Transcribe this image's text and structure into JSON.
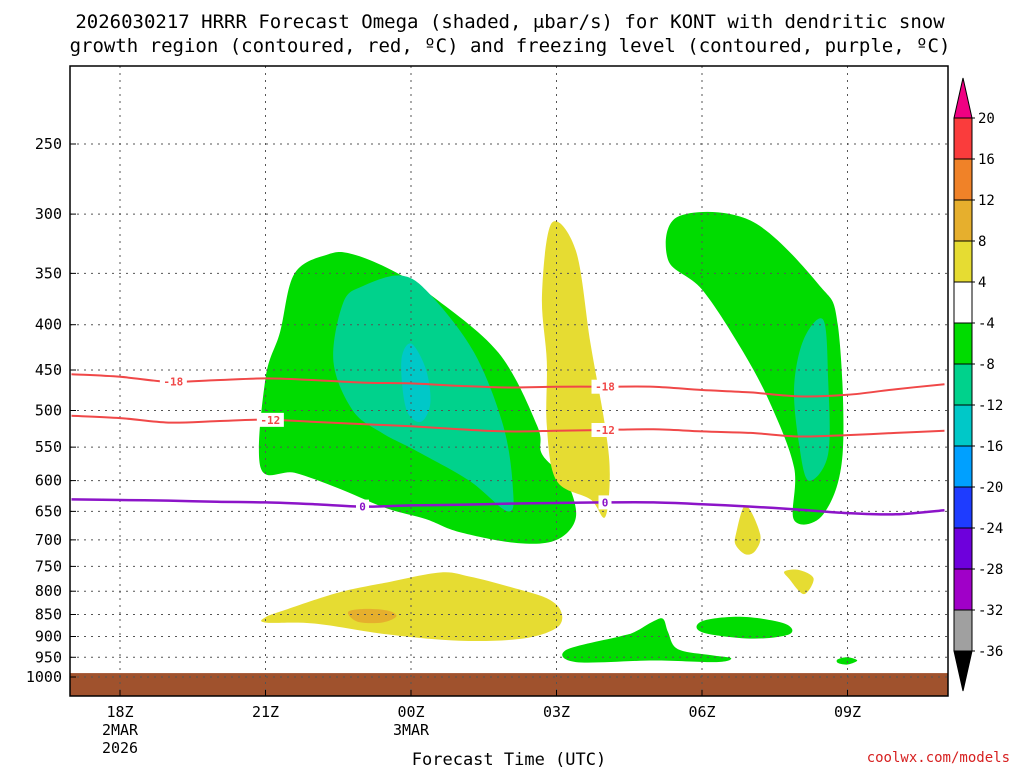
{
  "title": {
    "line1": "2026030217 HRRR Forecast Omega (shaded, μbar/s) for KONT with dendritic snow",
    "line2": "growth region (contoured, red, ºC) and freezing level (contoured, purple, ºC)"
  },
  "credit": "coolwx.com/models",
  "chart_data": {
    "type": "contour",
    "xlabel": "Forecast Time (UTC)",
    "ylabel": "",
    "x_ticks": [
      {
        "hour": 0,
        "label": "18Z",
        "sub1": "2MAR",
        "sub2": "2026"
      },
      {
        "hour": 3,
        "label": "21Z",
        "sub1": "",
        "sub2": ""
      },
      {
        "hour": 6,
        "label": "00Z",
        "sub1": "3MAR",
        "sub2": ""
      },
      {
        "hour": 9,
        "label": "03Z",
        "sub1": "",
        "sub2": ""
      },
      {
        "hour": 12,
        "label": "06Z",
        "sub1": "",
        "sub2": ""
      },
      {
        "hour": 15,
        "label": "09Z",
        "sub1": "",
        "sub2": ""
      }
    ],
    "y_ticks": [
      250,
      300,
      350,
      400,
      450,
      500,
      550,
      600,
      650,
      700,
      750,
      800,
      850,
      900,
      950,
      1000
    ],
    "ylim_hpa": [
      1000,
      200
    ],
    "xlim_hours": [
      -1,
      17
    ],
    "grid": true,
    "colorbar": {
      "levels": [
        -36,
        -32,
        -28,
        -24,
        -20,
        -16,
        -12,
        -8,
        -4,
        4,
        8,
        12,
        16,
        20
      ],
      "colors": [
        "#000000",
        "#a0a0a0",
        "#a000c8",
        "#6e00dc",
        "#1e3cff",
        "#00a0ff",
        "#00c8c8",
        "#00d28c",
        "#00dc00",
        "#ffffff",
        "#e6dc32",
        "#e6af2d",
        "#f08228",
        "#fa3c3c",
        "#f00082"
      ]
    },
    "ground": {
      "top_hpa": 990,
      "color": "#a0522d"
    },
    "shaded_regions": [
      {
        "level": -4,
        "color": "#00dc00",
        "points": [
          [
            2.9,
            580
          ],
          [
            3.0,
            460
          ],
          [
            3.3,
            408
          ],
          [
            3.6,
            350
          ],
          [
            4.3,
            333
          ],
          [
            4.8,
            333
          ],
          [
            5.6,
            347
          ],
          [
            6.4,
            370
          ],
          [
            7.8,
            430
          ],
          [
            8.6,
            520
          ],
          [
            8.7,
            560
          ],
          [
            9.2,
            600
          ],
          [
            9.4,
            660
          ],
          [
            9.0,
            700
          ],
          [
            8.2,
            706
          ],
          [
            7.0,
            686
          ],
          [
            6.3,
            663
          ],
          [
            5.5,
            645
          ],
          [
            4.5,
            612
          ],
          [
            3.6,
            588
          ]
        ]
      },
      {
        "level": -8,
        "color": "#00d28c",
        "points": [
          [
            4.4,
            440
          ],
          [
            4.6,
            378
          ],
          [
            5.0,
            362
          ],
          [
            5.8,
            352
          ],
          [
            6.4,
            370
          ],
          [
            7.3,
            430
          ],
          [
            7.9,
            520
          ],
          [
            8.1,
            610
          ],
          [
            8.0,
            650
          ],
          [
            7.2,
            600
          ],
          [
            6.1,
            555
          ],
          [
            5.4,
            530
          ],
          [
            4.8,
            500
          ]
        ]
      },
      {
        "level": -12,
        "color": "#00c8c8",
        "points": [
          [
            5.8,
            440
          ],
          [
            6.0,
            420
          ],
          [
            6.3,
            448
          ],
          [
            6.4,
            490
          ],
          [
            6.2,
            515
          ],
          [
            5.9,
            498
          ]
        ]
      },
      {
        "level": -4,
        "color": "#00dc00",
        "points": [
          [
            9.2,
            932
          ],
          [
            10.3,
            900
          ],
          [
            10.6,
            890
          ],
          [
            11.0,
            865
          ],
          [
            11.2,
            860
          ],
          [
            11.3,
            890
          ],
          [
            11.5,
            930
          ],
          [
            12.2,
            945
          ],
          [
            12.6,
            952
          ],
          [
            12.3,
            962
          ],
          [
            11.0,
            958
          ],
          [
            9.4,
            962
          ]
        ]
      },
      {
        "level": -4,
        "color": "#00dc00",
        "points": [
          [
            11.5,
            302
          ],
          [
            13.0,
            305
          ],
          [
            14.4,
            360
          ],
          [
            14.8,
            400
          ],
          [
            14.9,
            560
          ],
          [
            14.5,
            655
          ],
          [
            13.9,
            665
          ],
          [
            13.9,
            580
          ],
          [
            13.4,
            490
          ],
          [
            12.8,
            425
          ],
          [
            12.0,
            365
          ],
          [
            11.3,
            338
          ]
        ]
      },
      {
        "level": -8,
        "color": "#00d28c",
        "points": [
          [
            14.1,
            415
          ],
          [
            14.5,
            395
          ],
          [
            14.6,
            460
          ],
          [
            14.6,
            560
          ],
          [
            14.2,
            600
          ],
          [
            14.0,
            545
          ],
          [
            13.9,
            470
          ]
        ]
      },
      {
        "level": -4,
        "color": "#00dc00",
        "points": [
          [
            12.0,
            865
          ],
          [
            12.8,
            855
          ],
          [
            13.7,
            870
          ],
          [
            13.8,
            895
          ],
          [
            13.0,
            905
          ],
          [
            12.0,
            890
          ]
        ]
      },
      {
        "level": -4,
        "color": "#00dc00",
        "points": [
          [
            14.8,
            955
          ],
          [
            15.0,
            950
          ],
          [
            15.2,
            958
          ],
          [
            15.0,
            968
          ],
          [
            14.8,
            964
          ]
        ]
      },
      {
        "level": 4,
        "color": "#e6dc32",
        "points": [
          [
            8.7,
            370
          ],
          [
            8.9,
            307
          ],
          [
            9.4,
            330
          ],
          [
            9.7,
            420
          ],
          [
            10.0,
            520
          ],
          [
            10.1,
            590
          ],
          [
            10.0,
            660
          ],
          [
            9.7,
            630
          ],
          [
            9.0,
            600
          ],
          [
            8.8,
            520
          ],
          [
            8.8,
            440
          ]
        ]
      },
      {
        "level": 4,
        "color": "#e6dc32",
        "points": [
          [
            12.7,
            690
          ],
          [
            12.9,
            640
          ],
          [
            13.2,
            690
          ],
          [
            13.1,
            720
          ],
          [
            12.9,
            727
          ],
          [
            12.7,
            710
          ]
        ]
      },
      {
        "level": 4,
        "color": "#e6dc32",
        "points": [
          [
            13.7,
            760
          ],
          [
            14.0,
            757
          ],
          [
            14.3,
            774
          ],
          [
            14.1,
            806
          ],
          [
            13.8,
            775
          ]
        ]
      },
      {
        "level": 4,
        "color": "#e6dc32",
        "points": [
          [
            3.0,
            856
          ],
          [
            3.4,
            840
          ],
          [
            4.5,
            803
          ],
          [
            5.5,
            782
          ],
          [
            6.6,
            762
          ],
          [
            7.2,
            770
          ],
          [
            8.0,
            790
          ],
          [
            8.8,
            815
          ],
          [
            9.1,
            845
          ],
          [
            9.0,
            880
          ],
          [
            8.3,
            905
          ],
          [
            7.0,
            910
          ],
          [
            5.5,
            895
          ],
          [
            4.0,
            870
          ],
          [
            3.0,
            868
          ]
        ]
      },
      {
        "level": 8,
        "color": "#e6af2d",
        "points": [
          [
            4.7,
            845
          ],
          [
            5.0,
            838
          ],
          [
            5.5,
            841
          ],
          [
            5.7,
            854
          ],
          [
            5.4,
            868
          ],
          [
            4.9,
            866
          ]
        ]
      }
    ],
    "series": [
      {
        "name": "-18",
        "color": "#f04848",
        "width": 2,
        "x": [
          -1,
          0,
          1,
          2,
          3,
          4,
          5,
          6,
          7,
          8,
          9,
          10,
          11,
          12,
          13,
          14,
          15,
          16,
          17
        ],
        "y": [
          455,
          458,
          464,
          462,
          460,
          462,
          465,
          466,
          469,
          471,
          470,
          470,
          470,
          474,
          477,
          482,
          480,
          473,
          467
        ],
        "labels": [
          {
            "text": "-18",
            "x": 1.1
          },
          {
            "text": "-18",
            "x": 10.0
          }
        ]
      },
      {
        "name": "-12",
        "color": "#f04848",
        "width": 2,
        "x": [
          -1,
          0,
          1,
          2,
          3,
          4,
          5,
          6,
          7,
          8,
          9,
          10,
          11,
          12,
          13,
          14,
          15,
          16,
          17
        ],
        "y": [
          507,
          510,
          516,
          514,
          512,
          515,
          518,
          521,
          525,
          528,
          527,
          526,
          525,
          528,
          530,
          535,
          533,
          530,
          527
        ],
        "labels": [
          {
            "text": "-12",
            "x": 3.1
          },
          {
            "text": "-12",
            "x": 10.0
          }
        ]
      },
      {
        "name": "0",
        "color": "#8c14c8",
        "width": 2.5,
        "x": [
          -1,
          0,
          1,
          2,
          3,
          4,
          5,
          6,
          7,
          8,
          9,
          10,
          11,
          12,
          13,
          14,
          15,
          16,
          17
        ],
        "y": [
          630,
          631,
          632,
          634,
          635,
          638,
          642,
          640,
          639,
          637,
          636,
          635,
          635,
          638,
          642,
          647,
          653,
          655,
          648
        ],
        "labels": [
          {
            "text": "0",
            "x": 5.0
          },
          {
            "text": "0",
            "x": 10.0
          }
        ]
      }
    ]
  }
}
